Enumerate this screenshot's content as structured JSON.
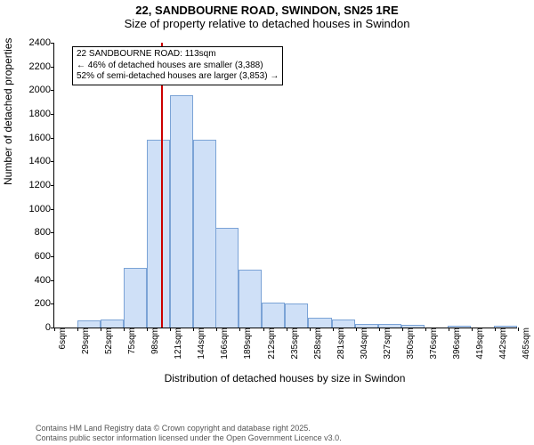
{
  "title_line1": "22, SANDBOURNE ROAD, SWINDON, SN25 1RE",
  "title_line2": "Size of property relative to detached houses in Swindon",
  "chart": {
    "type": "histogram",
    "ylabel": "Number of detached properties",
    "xlabel": "Distribution of detached houses by size in Swindon",
    "ylim": [
      0,
      2400
    ],
    "ytick_step": 200,
    "yticks": [
      0,
      200,
      400,
      600,
      800,
      1000,
      1200,
      1400,
      1600,
      1800,
      2000,
      2200,
      2400
    ],
    "xticks": [
      "6sqm",
      "29sqm",
      "52sqm",
      "75sqm",
      "98sqm",
      "121sqm",
      "144sqm",
      "166sqm",
      "189sqm",
      "212sqm",
      "235sqm",
      "258sqm",
      "281sqm",
      "304sqm",
      "327sqm",
      "350sqm",
      "376sqm",
      "396sqm",
      "419sqm",
      "442sqm",
      "465sqm"
    ],
    "bin_width": 23,
    "x_min": 6,
    "x_max": 465,
    "bars": [
      {
        "start": 6,
        "value": 0
      },
      {
        "start": 29,
        "value": 60
      },
      {
        "start": 52,
        "value": 70
      },
      {
        "start": 75,
        "value": 500
      },
      {
        "start": 98,
        "value": 1580
      },
      {
        "start": 121,
        "value": 1960
      },
      {
        "start": 144,
        "value": 1580
      },
      {
        "start": 166,
        "value": 840
      },
      {
        "start": 189,
        "value": 490
      },
      {
        "start": 212,
        "value": 210
      },
      {
        "start": 235,
        "value": 200
      },
      {
        "start": 258,
        "value": 80
      },
      {
        "start": 281,
        "value": 70
      },
      {
        "start": 304,
        "value": 30
      },
      {
        "start": 327,
        "value": 30
      },
      {
        "start": 350,
        "value": 20
      },
      {
        "start": 376,
        "value": 0
      },
      {
        "start": 396,
        "value": 15
      },
      {
        "start": 419,
        "value": 0
      },
      {
        "start": 442,
        "value": 15
      }
    ],
    "bar_fill": "#cfe0f7",
    "bar_stroke": "#7ba3d6",
    "background": "#ffffff",
    "tick_color": "#000000",
    "marker": {
      "x_value": 113,
      "color": "#cc0000",
      "width": 2
    },
    "annotation": {
      "line1": "22 SANDBOURNE ROAD: 113sqm",
      "line2": "← 46% of detached houses are smaller (3,388)",
      "line3": "52% of semi-detached houses are larger (3,853) →",
      "box_border": "#000000",
      "box_bg": "#ffffff",
      "font_size": 10
    }
  },
  "footer_line1": "Contains HM Land Registry data © Crown copyright and database right 2025.",
  "footer_line2": "Contains public sector information licensed under the Open Government Licence v3.0."
}
